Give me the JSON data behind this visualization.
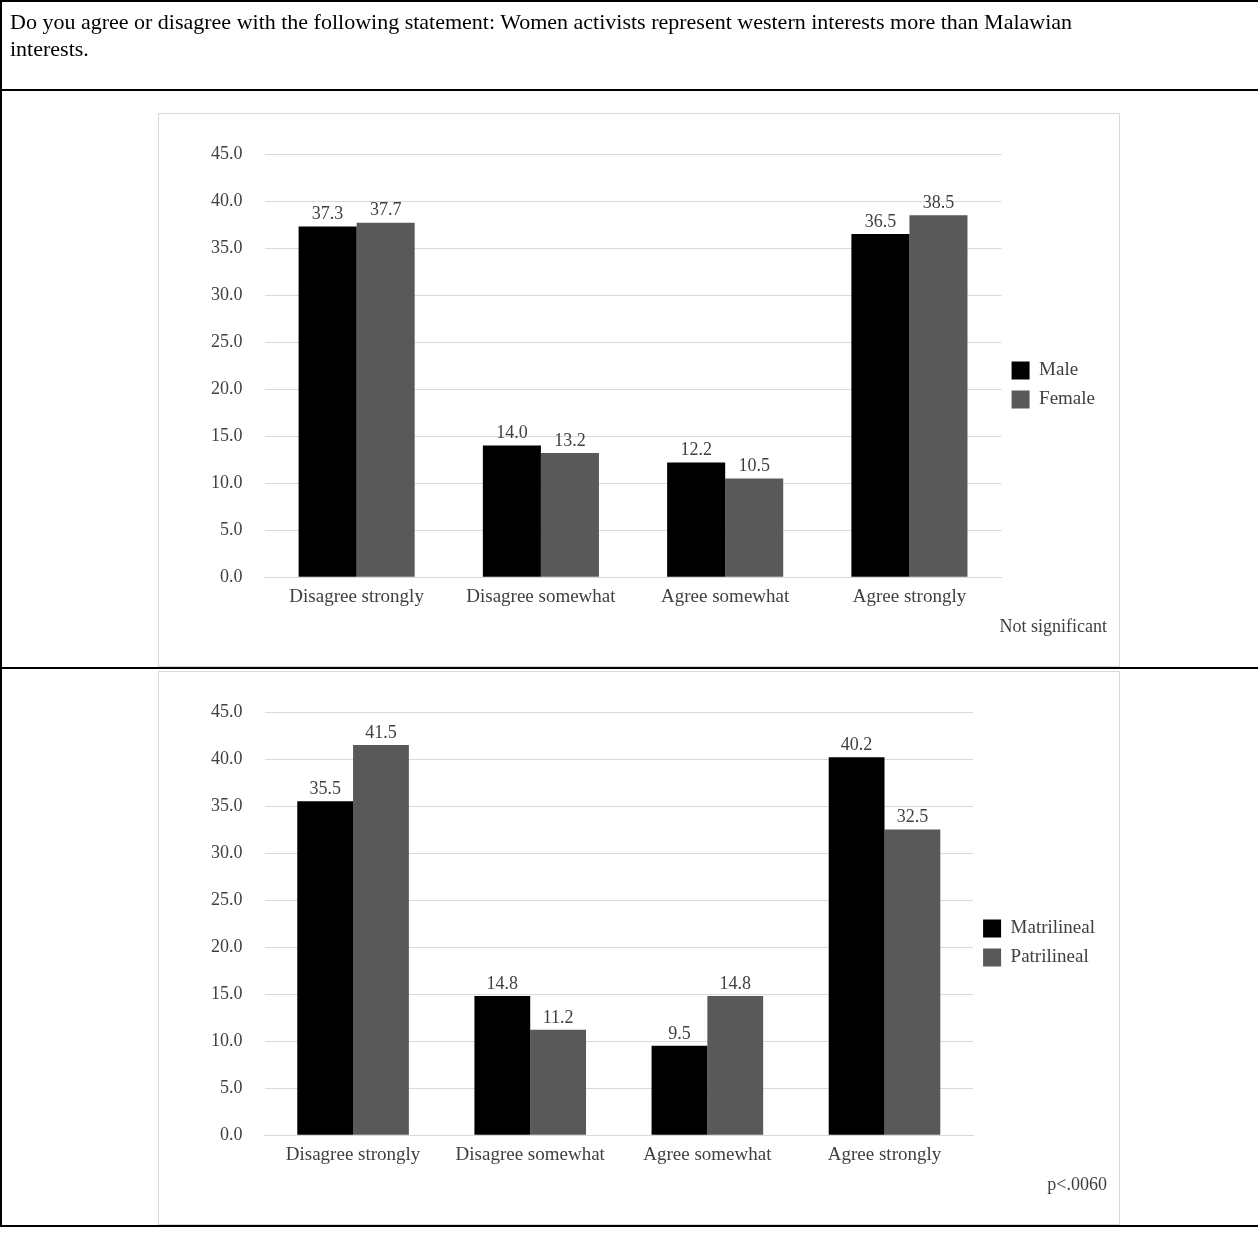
{
  "chart_data": [
    {
      "type": "bar",
      "title": "Do you agree or disagree with the following statement: Women activists represent western interests more than Malawian interests.",
      "categories": [
        "Disagree strongly",
        "Disagree somewhat",
        "Agree somewhat",
        "Agree strongly"
      ],
      "series": [
        {
          "name": "Male",
          "color": "#000000",
          "values": [
            37.3,
            14.0,
            12.2,
            36.5
          ],
          "value_labels": [
            "37.3",
            "14.0",
            "12.2",
            "36.5"
          ]
        },
        {
          "name": "Female",
          "color": "#595959",
          "values": [
            37.7,
            13.2,
            10.5,
            38.5
          ],
          "value_labels": [
            "37.7",
            "13.2",
            "10.5",
            "38.5"
          ]
        }
      ],
      "ylim": [
        0,
        45
      ],
      "yticks": [
        {
          "value": 0,
          "label": "0.0"
        },
        {
          "value": 5,
          "label": "5.0"
        },
        {
          "value": 10,
          "label": "10.0"
        },
        {
          "value": 15,
          "label": "15.0"
        },
        {
          "value": 20,
          "label": "20.0"
        },
        {
          "value": 25,
          "label": "25.0"
        },
        {
          "value": 30,
          "label": "30.0"
        },
        {
          "value": 35,
          "label": "35.0"
        },
        {
          "value": 40,
          "label": "40.0"
        },
        {
          "value": 45,
          "label": "45.0"
        }
      ],
      "grid": "y",
      "legend": "right",
      "annotations": [
        "Not significant"
      ]
    },
    {
      "type": "bar",
      "categories": [
        "Disagree strongly",
        "Disagree somewhat",
        "Agree somewhat",
        "Agree strongly"
      ],
      "series": [
        {
          "name": "Matrilineal",
          "color": "#000000",
          "values": [
            35.5,
            14.8,
            9.5,
            40.2
          ],
          "value_labels": [
            "35.5",
            "14.8",
            "9.5",
            "40.2"
          ]
        },
        {
          "name": "Patrilineal",
          "color": "#595959",
          "values": [
            41.5,
            11.2,
            14.8,
            32.5
          ],
          "value_labels": [
            "41.5",
            "11.2",
            "14.8",
            "32.5"
          ]
        }
      ],
      "ylim": [
        0,
        45
      ],
      "yticks": [
        {
          "value": 0,
          "label": "0.0"
        },
        {
          "value": 5,
          "label": "5.0"
        },
        {
          "value": 10,
          "label": "10.0"
        },
        {
          "value": 15,
          "label": "15.0"
        },
        {
          "value": 20,
          "label": "20.0"
        },
        {
          "value": 25,
          "label": "25.0"
        },
        {
          "value": 30,
          "label": "30.0"
        },
        {
          "value": 35,
          "label": "35.0"
        },
        {
          "value": 40,
          "label": "40.0"
        },
        {
          "value": 45,
          "label": "45.0"
        }
      ],
      "grid": "y",
      "legend": "right",
      "annotations": [
        "p<.0060"
      ]
    }
  ]
}
